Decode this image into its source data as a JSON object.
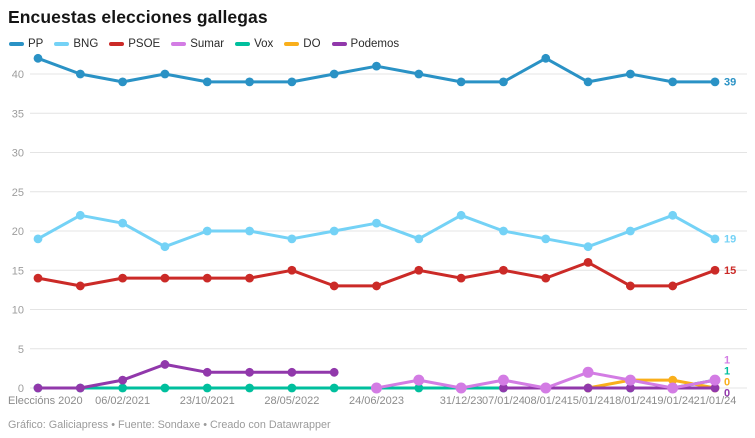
{
  "header": {
    "title": "Encuestas elecciones gallegas"
  },
  "footer": {
    "credit": "Gráfico: Galiciapress • Fuente: Sondaxe • Creado con Datawrapper"
  },
  "chart_data": {
    "type": "line",
    "title": "Encuestas elecciones gallegas",
    "grid": "horizontal",
    "legend_position": "top",
    "ylim": [
      0,
      43
    ],
    "y_ticks": [
      0,
      5,
      10,
      15,
      20,
      25,
      30,
      35,
      40
    ],
    "x_point_count": 17,
    "x_tick_labels": [
      {
        "index": 0,
        "label": "Eleccións 2020"
      },
      {
        "index": 2,
        "label": "06/02/2021"
      },
      {
        "index": 4,
        "label": "23/10/2021"
      },
      {
        "index": 6,
        "label": "28/05/2022"
      },
      {
        "index": 8,
        "label": "24/06/2023"
      },
      {
        "index": 10,
        "label": "31/12/23"
      },
      {
        "index": 11,
        "label": "07/01/24"
      },
      {
        "index": 12,
        "label": "08/01/24"
      },
      {
        "index": 13,
        "label": "15/01/24"
      },
      {
        "index": 14,
        "label": "18/01/24"
      },
      {
        "index": 15,
        "label": "19/01/24"
      },
      {
        "index": 16,
        "label": "21/01/24"
      }
    ],
    "series": [
      {
        "name": "PP",
        "color": "#2a92c5",
        "z": 1,
        "end_label": "39",
        "values": [
          42,
          40,
          39,
          40,
          39,
          39,
          39,
          40,
          41,
          40,
          39,
          39,
          42,
          39,
          40,
          39,
          39
        ]
      },
      {
        "name": "BNG",
        "color": "#74d2f6",
        "z": 2,
        "end_label": "19",
        "values": [
          19,
          22,
          21,
          18,
          20,
          20,
          19,
          20,
          21,
          19,
          22,
          20,
          19,
          18,
          20,
          22,
          19
        ]
      },
      {
        "name": "PSOE",
        "color": "#cb2a27",
        "z": 3,
        "end_label": "15",
        "values": [
          14,
          13,
          14,
          14,
          14,
          14,
          15,
          13,
          13,
          15,
          14,
          15,
          14,
          16,
          13,
          13,
          15
        ]
      },
      {
        "name": "Sumar",
        "color": "#d37ce4",
        "z": 7,
        "end_label": "1",
        "dot_radius": 5.5,
        "values": [
          null,
          null,
          null,
          null,
          null,
          null,
          null,
          null,
          0,
          1,
          0,
          1,
          0,
          2,
          1,
          0,
          1
        ]
      },
      {
        "name": "Vox",
        "color": "#00bf9d",
        "z": 4,
        "end_label": "1",
        "values": [
          0,
          0,
          0,
          0,
          0,
          0,
          0,
          0,
          0,
          0,
          0,
          0,
          0,
          0,
          0,
          0,
          1
        ]
      },
      {
        "name": "DO",
        "color": "#f9af1b",
        "z": 5,
        "end_label": "0",
        "values": [
          null,
          null,
          null,
          null,
          null,
          null,
          null,
          null,
          null,
          null,
          null,
          null,
          null,
          0,
          1,
          1,
          0
        ]
      },
      {
        "name": "Podemos",
        "color": "#9138ab",
        "z": 6,
        "end_label": "0",
        "values": [
          0,
          0,
          1,
          3,
          2,
          2,
          2,
          2,
          null,
          null,
          null,
          0,
          0,
          0,
          0,
          0,
          0
        ]
      }
    ]
  }
}
